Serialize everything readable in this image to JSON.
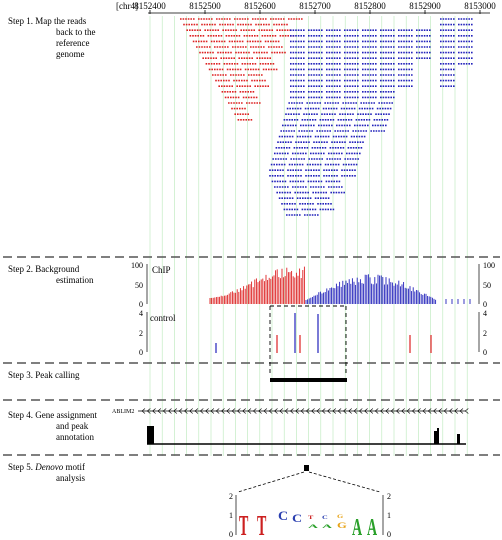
{
  "genome_axis": {
    "chrom_label": "[chr4]",
    "tick_labels": [
      "8152400",
      "8152500",
      "8152600",
      "8152700",
      "8152800",
      "8152900",
      "8153000"
    ]
  },
  "steps": [
    {
      "id": "step1",
      "text_lines": [
        "Step 1.  Map the reads",
        "back to the",
        "reference",
        "genome"
      ]
    },
    {
      "id": "step2",
      "text_lines": [
        "Step 2.  Background",
        "estimation"
      ]
    },
    {
      "id": "step3",
      "text_lines": [
        "Step 3.  Peak calling"
      ]
    },
    {
      "id": "step4",
      "text_lines": [
        "Step 4.  Gene assignment",
        "and peak",
        "annotation"
      ]
    },
    {
      "id": "step5",
      "text_lines": [
        "Step 5.  ",
        "Denovo",
        " motif",
        "analysis"
      ]
    }
  ],
  "chip_track": {
    "label": "ChIP",
    "y_ticks": [
      "100",
      "50",
      "0"
    ],
    "colors": {
      "forward": "#dd2222",
      "reverse": "#2222bb"
    }
  },
  "control_track": {
    "label": "control",
    "y_ticks": [
      "4",
      "2",
      "0"
    ]
  },
  "gene_track": {
    "gene_label": "ABLIM2",
    "strand": "minus"
  },
  "motif_logo": {
    "letters": [
      "T",
      "T",
      "C",
      "C",
      "A",
      "G",
      "A",
      "A"
    ],
    "y_ticks": [
      "2",
      "1",
      "0"
    ],
    "colors": {
      "A": "#2aa02a",
      "C": "#2a3fb0",
      "G": "#e8a317",
      "T": "#cc2020"
    }
  }
}
